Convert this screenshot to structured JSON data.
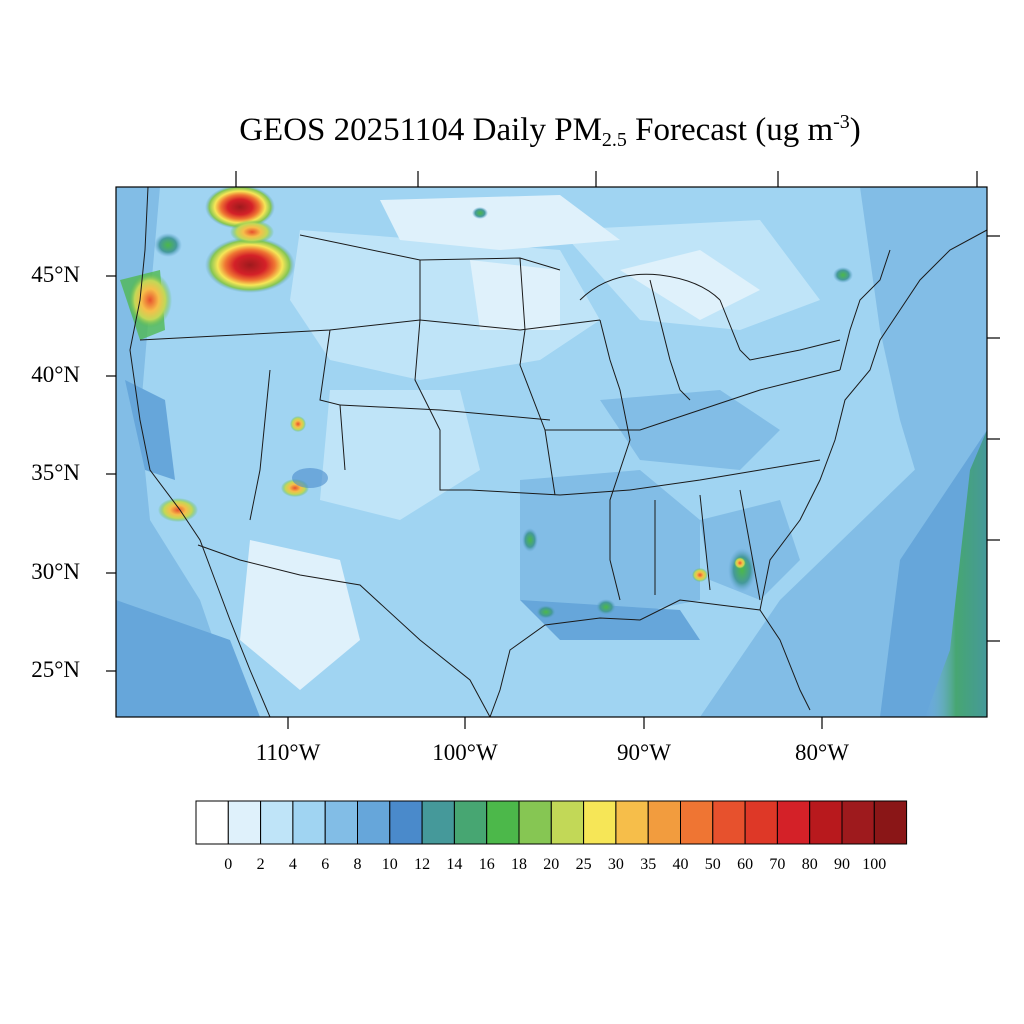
{
  "title": {
    "prefix": "GEOS 20251104 Daily PM",
    "subscript": "2.5",
    "middle": " Forecast (ug m",
    "superscript": "-3",
    "suffix": ")"
  },
  "map": {
    "projection": "Lambert conformal",
    "region": "Contiguous United States",
    "lat_labels": [
      "45°N",
      "40°N",
      "35°N",
      "30°N",
      "25°N"
    ],
    "lon_labels": [
      "110°W",
      "100°W",
      "90°W",
      "80°W"
    ],
    "background_range": "approximately 2–10 ug m-3 over most of the domain",
    "hotspots": [
      {
        "region": "northern Idaho / western Montana",
        "level": "60–100"
      },
      {
        "region": "southern British Columbia",
        "level": "60–100"
      },
      {
        "region": "western Oregon coast",
        "level": "20–50"
      },
      {
        "region": "southern California",
        "level": "20–35"
      },
      {
        "region": "central Arizona",
        "level": "35–50"
      },
      {
        "region": "southwestern Georgia / Florida panhandle",
        "level": "25–40"
      },
      {
        "region": "Gulf coast Louisiana",
        "level": "16–30"
      },
      {
        "region": "western Atlantic offshore",
        "level": "14–20"
      }
    ]
  },
  "colorbar": {
    "labels": [
      "0",
      "2",
      "4",
      "6",
      "8",
      "10",
      "12",
      "14",
      "16",
      "18",
      "20",
      "25",
      "30",
      "35",
      "40",
      "50",
      "60",
      "70",
      "80",
      "90",
      "100"
    ],
    "colors": [
      "#ffffff",
      "#dff1fb",
      "#bfe4f8",
      "#a0d4f2",
      "#82bde6",
      "#66a6da",
      "#4a8acb",
      "#45999a",
      "#47a672",
      "#4cb84a",
      "#86c653",
      "#c2d857",
      "#f6e657",
      "#f6be4a",
      "#f29c3e",
      "#ef7533",
      "#e7512d",
      "#de3827",
      "#d42128",
      "#b8191d",
      "#9e1a1d",
      "#8a1617"
    ]
  }
}
